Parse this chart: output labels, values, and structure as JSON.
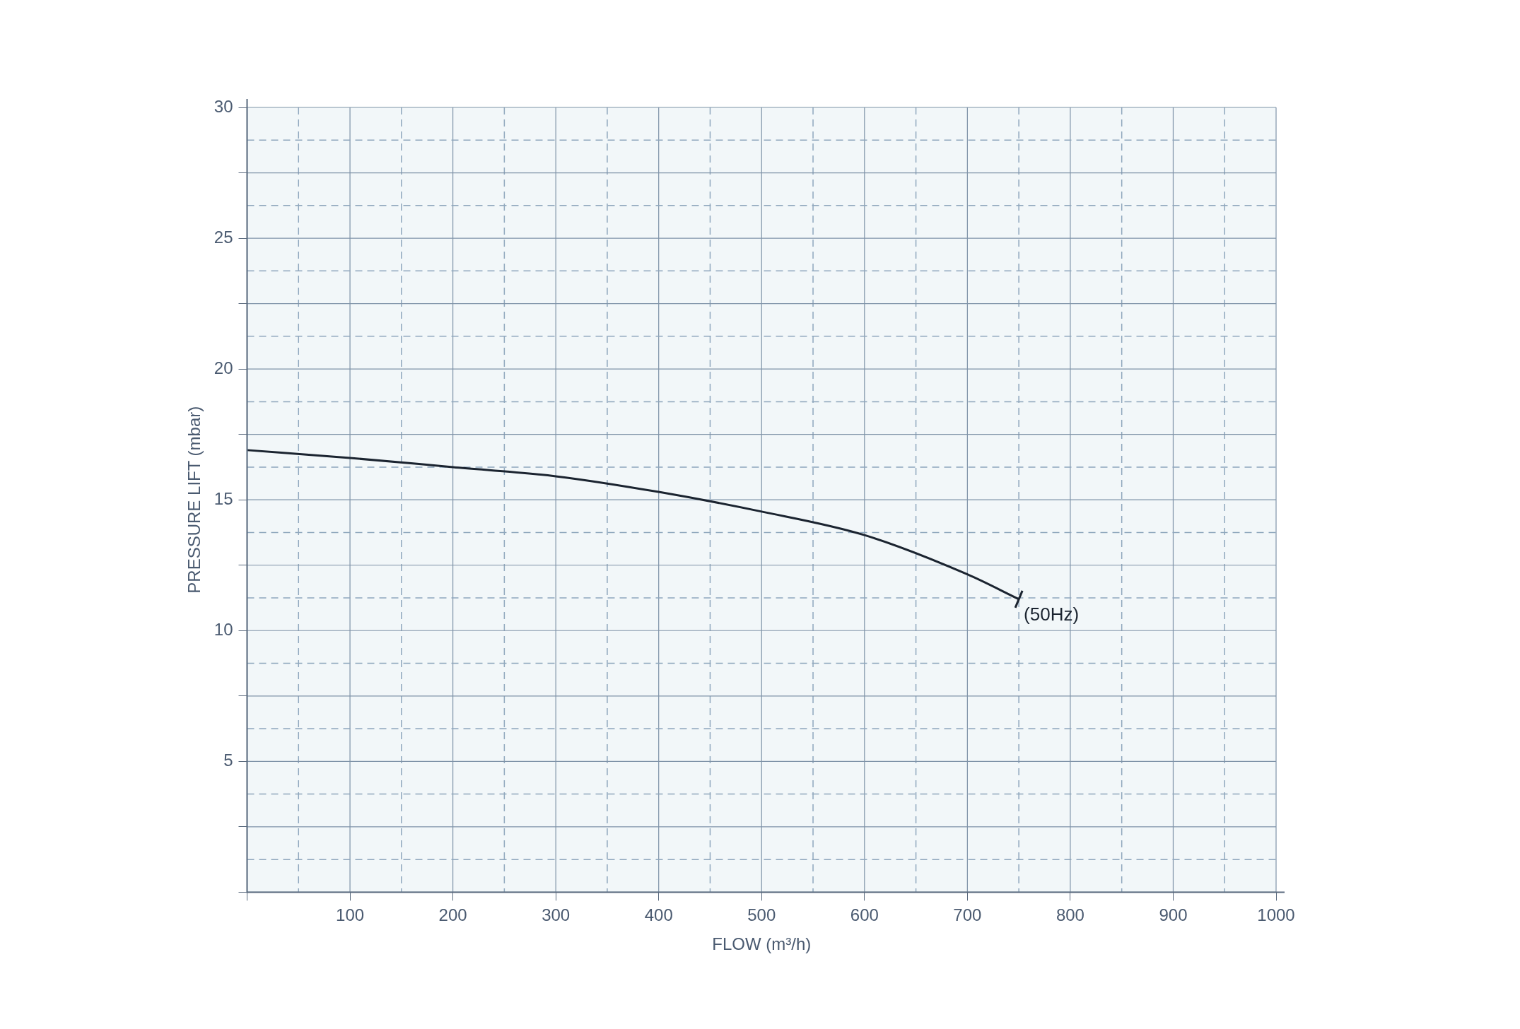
{
  "chart_data": {
    "type": "line",
    "xlabel": "FLOW (m³/h)",
    "ylabel": "PRESSURE LIFT (mbar)",
    "x": [
      0,
      100,
      200,
      300,
      400,
      500,
      600,
      700,
      750
    ],
    "series": [
      {
        "color": "#1b2430",
        "values": [
          16.9,
          16.6,
          16.25,
          15.9,
          15.3,
          14.55,
          13.65,
          12.15,
          11.2
        ]
      }
    ],
    "xlim": [
      0,
      1000
    ],
    "xticks": [
      {
        "value": 0,
        "label": null
      },
      {
        "value": 50,
        "label": null
      },
      100,
      {
        "value": 150,
        "label": null
      },
      200,
      {
        "value": 250,
        "label": null
      },
      300,
      {
        "value": 350,
        "label": null
      },
      400,
      {
        "value": 450,
        "label": null
      },
      500,
      {
        "value": 550,
        "label": null
      },
      600,
      {
        "value": 650,
        "label": null
      },
      700,
      {
        "value": 750,
        "label": null
      },
      800,
      {
        "value": 850,
        "label": null
      },
      900,
      {
        "value": 950,
        "label": null
      },
      1000
    ],
    "ylim": [
      0,
      30
    ],
    "yticks": [
      {
        "value": 0,
        "label": null
      },
      {
        "value": 1.25,
        "label": null
      },
      {
        "value": 2.5,
        "label": null
      },
      {
        "value": 3.75,
        "label": null
      },
      5,
      {
        "value": 6.25,
        "label": null
      },
      {
        "value": 7.5,
        "label": null
      },
      {
        "value": 8.75,
        "label": null
      },
      10,
      {
        "value": 11.25,
        "label": null
      },
      {
        "value": 12.5,
        "label": null
      },
      {
        "value": 13.75,
        "label": null
      },
      15,
      {
        "value": 16.25,
        "label": null
      },
      {
        "value": 17.5,
        "label": null
      },
      {
        "value": 18.75,
        "label": null
      },
      20,
      {
        "value": 21.25,
        "label": null
      },
      {
        "value": 22.5,
        "label": null
      },
      {
        "value": 23.75,
        "label": null
      },
      25,
      {
        "value": 26.25,
        "label": null
      },
      {
        "value": 27.5,
        "label": null
      },
      {
        "value": 28.75,
        "label": null
      },
      30
    ],
    "grid": true,
    "legend": false,
    "marker": "none",
    "line_style": "solid",
    "annotations": [
      {
        "text": "(50Hz)",
        "x": 750,
        "y": 11.2
      }
    ]
  }
}
